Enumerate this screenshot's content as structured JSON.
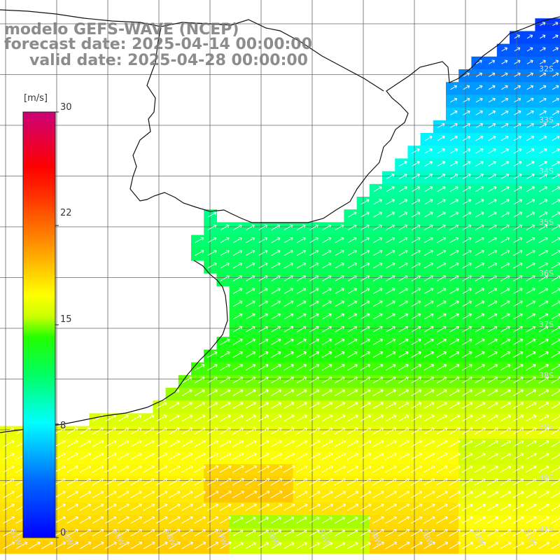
{
  "title": {
    "line1": "modelo GEFS-WAVE (NCEP)",
    "line2": "forecast date: 2025-04-14 00:00:00",
    "line3": "valid date: 2025-04-28 00:00:00"
  },
  "colorbar": {
    "unit": "[m/s]",
    "ticks": [
      "0",
      "8",
      "15",
      "22",
      "30"
    ],
    "range": [
      0,
      30
    ]
  },
  "axes": {
    "lat_labels": [
      "32S",
      "33S",
      "34S",
      "35S",
      "36S",
      "37S",
      "38S",
      "39S",
      "40S",
      "41S"
    ],
    "lon_labels": [
      "61W",
      "60W",
      "59W",
      "58W",
      "57W",
      "56W",
      "55W",
      "54W",
      "53W",
      "52W",
      "51W"
    ]
  },
  "map_data": {
    "type": "gridded wind speed with direction arrows",
    "variable": "wind speed",
    "units": "m/s",
    "region": {
      "lat_range": [
        "31S",
        "41S"
      ],
      "lon_range": [
        "61W",
        "50W"
      ]
    },
    "arrow_direction": "toward northeast (south-westerly winds)",
    "speed_zones": [
      {
        "zone": "north, off 32S-33S",
        "speed_ms": [
          2,
          5
        ],
        "color": "blue"
      },
      {
        "zone": "33S-34S",
        "speed_ms": [
          7,
          9
        ],
        "color": "cyan"
      },
      {
        "zone": "34S-37S",
        "speed_ms": [
          10,
          13
        ],
        "color": "green"
      },
      {
        "zone": "37S-38S",
        "speed_ms": [
          13,
          15
        ],
        "color": "yellow-green"
      },
      {
        "zone": "38S-39S",
        "speed_ms": [
          15,
          17
        ],
        "color": "yellow"
      },
      {
        "zone": "39S-41S",
        "speed_ms": [
          17,
          19
        ],
        "color": "orange"
      }
    ]
  }
}
